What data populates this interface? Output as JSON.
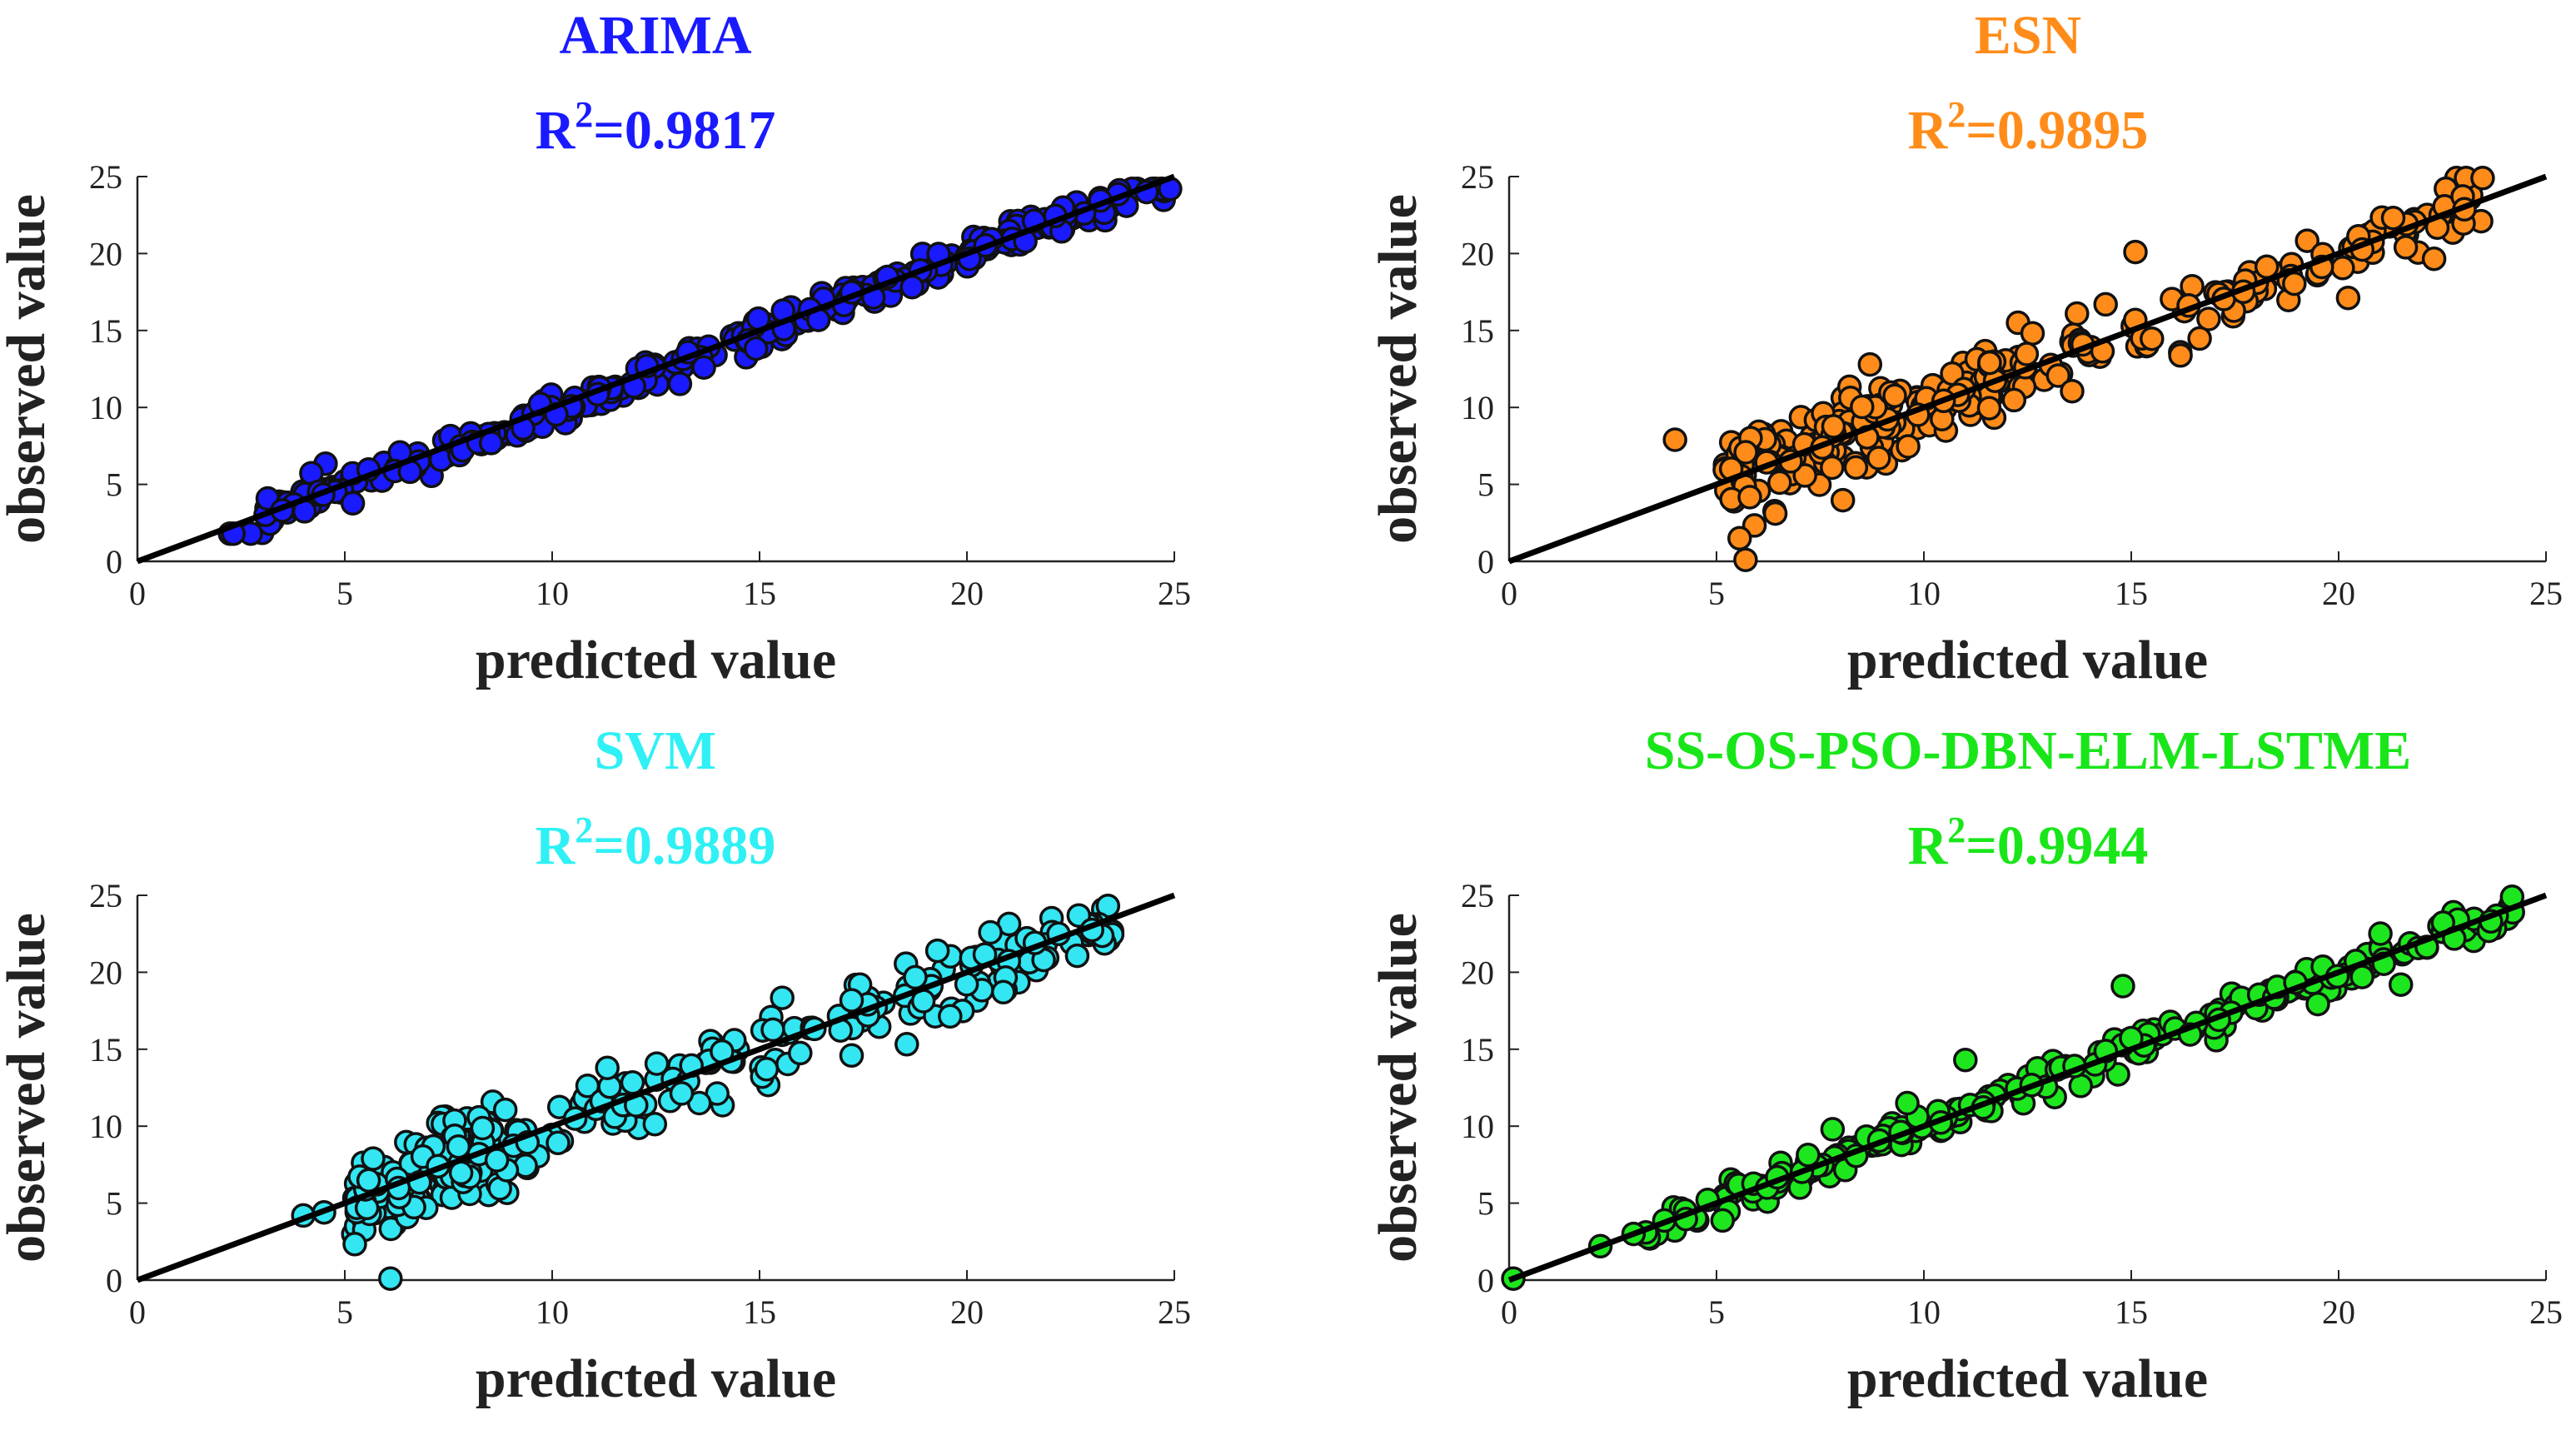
{
  "figure": {
    "type": "scatter-grid",
    "rows": 2,
    "cols": 2
  },
  "chart_data": [
    {
      "type": "scatter",
      "title": "ARIMA",
      "r2_prefix": "R",
      "r2_exp": "2",
      "r2_value": "=0.9817",
      "color": "#1a1aff",
      "title_color": "#1a1aff",
      "xlabel": "predicted value",
      "ylabel": "observed value",
      "xlim": [
        0,
        25
      ],
      "ylim": [
        0,
        25
      ],
      "xticks": [
        0,
        5,
        10,
        15,
        20,
        25
      ],
      "yticks": [
        0,
        5,
        10,
        15,
        20,
        25
      ],
      "fit_line": [
        [
          0,
          0
        ],
        [
          25,
          25
        ]
      ],
      "points": {
        "generator": "arima",
        "count": 300,
        "x_range": [
          2.2,
          24.9
        ]
      }
    },
    {
      "type": "scatter",
      "title": "ESN",
      "r2_prefix": "R",
      "r2_exp": "2",
      "r2_value": "=0.9895",
      "color": "#ff8c1a",
      "title_color": "#ff8c1a",
      "xlabel": "predicted value",
      "ylabel": "observed value",
      "xlim": [
        0,
        25
      ],
      "ylim": [
        0,
        25
      ],
      "xticks": [
        0,
        5,
        10,
        15,
        20,
        25
      ],
      "yticks": [
        0,
        5,
        10,
        15,
        20,
        25
      ],
      "fit_line": [
        [
          0,
          0
        ],
        [
          25,
          25
        ]
      ],
      "points": {
        "generator": "esn",
        "count": 300,
        "x_range": [
          4,
          23.6
        ]
      }
    },
    {
      "type": "scatter",
      "title": "SVM",
      "r2_prefix": "R",
      "r2_exp": "2",
      "r2_value": "=0.9889",
      "color": "#33e6f2",
      "title_color": "#2ff0f5",
      "xlabel": "predicted value",
      "ylabel": "observed value",
      "xlim": [
        0,
        25
      ],
      "ylim": [
        0,
        25
      ],
      "xticks": [
        0,
        5,
        10,
        15,
        20,
        25
      ],
      "yticks": [
        0,
        5,
        10,
        15,
        20,
        25
      ],
      "fit_line": [
        [
          0,
          0
        ],
        [
          25,
          25
        ]
      ],
      "points": {
        "generator": "svm",
        "count": 300,
        "x_range": [
          4,
          23.6
        ]
      }
    },
    {
      "type": "scatter",
      "title": "SS-OS-PSO-DBN-ELM-LSTME",
      "r2_prefix": "R",
      "r2_exp": "2",
      "r2_value": "=0.9944",
      "color": "#1ee61e",
      "title_color": "#19e619",
      "xlabel": "predicted value",
      "ylabel": "observed value",
      "xlim": [
        0,
        25
      ],
      "ylim": [
        0,
        25
      ],
      "xticks": [
        0,
        5,
        10,
        15,
        20,
        25
      ],
      "yticks": [
        0,
        5,
        10,
        15,
        20,
        25
      ],
      "fit_line": [
        [
          0,
          0
        ],
        [
          25,
          25
        ]
      ],
      "points": {
        "generator": "ensemble",
        "count": 240,
        "x_range": [
          0,
          24.2
        ]
      }
    }
  ]
}
